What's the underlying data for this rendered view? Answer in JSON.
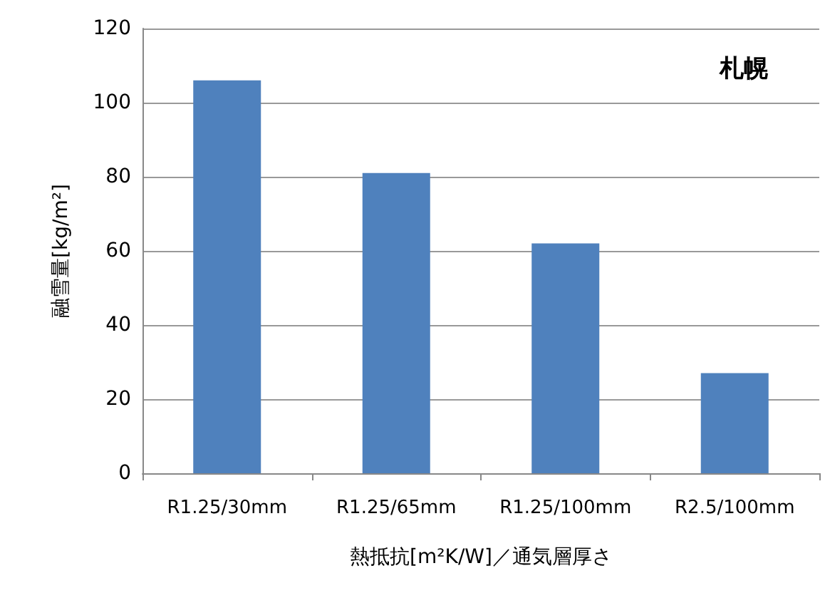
{
  "chart_data": {
    "type": "bar",
    "xlabel": "熱抵抗[m²K/W]／通気層厚さ",
    "ylabel": "融雪量[kg/m²]",
    "annotations": [
      "札幌"
    ],
    "categories": [
      "R1.25/30mm",
      "R1.25/65mm",
      "R1.25/100mm",
      "R2.5/100mm"
    ],
    "values": [
      106,
      81,
      62,
      27
    ],
    "color": "#4f81bd",
    "ylim": [
      0,
      120
    ],
    "yticks": [
      0,
      20,
      40,
      60,
      80,
      100,
      120
    ],
    "grid": "y"
  }
}
